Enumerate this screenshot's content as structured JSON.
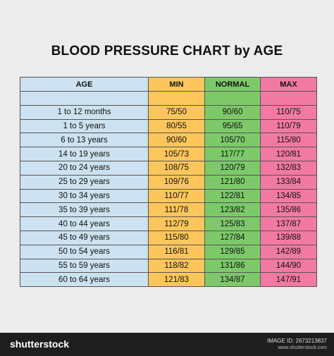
{
  "header": {
    "title": "BLOOD PRESSURE CHART by AGE"
  },
  "table": {
    "columns": [
      "AGE",
      "MIN",
      "NORMAL",
      "MAX"
    ],
    "rows": [
      [
        "1 to 12 months",
        "75/50",
        "90/60",
        "110/75"
      ],
      [
        "1 to 5 years",
        "80/55",
        "95/65",
        "110/79"
      ],
      [
        "6 to 13 years",
        "90/60",
        "105/70",
        "115/80"
      ],
      [
        "14 to 19 years",
        "105/73",
        "117/77",
        "120/81"
      ],
      [
        "20 to 24 years",
        "108/75",
        "120/79",
        "132/83"
      ],
      [
        "25 to 29 years",
        "109/76",
        "121/80",
        "133/84"
      ],
      [
        "30 to 34 years",
        "110/77",
        "122/81",
        "134/85"
      ],
      [
        "35 to 39 years",
        "111/78",
        "123/82",
        "135/86"
      ],
      [
        "40 to 44 years",
        "112/79",
        "125/83",
        "137/87"
      ],
      [
        "45 to 49 years",
        "115/80",
        "127/84",
        "139/88"
      ],
      [
        "50 to 54 years",
        "116/81",
        "129/85",
        "142/89"
      ],
      [
        "55 to 59 years",
        "118/82",
        "131/86",
        "144/90"
      ],
      [
        "60 to 64 years",
        "121/83",
        "134/87",
        "147/91"
      ]
    ]
  },
  "footer": {
    "logo": "shutterstock",
    "image_id": "IMAGE ID: 2673213837",
    "url": "www.shutterstock.com"
  }
}
